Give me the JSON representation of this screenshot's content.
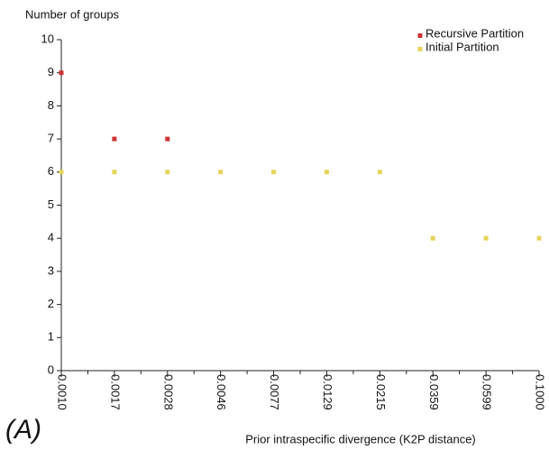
{
  "chart_data": {
    "type": "scatter",
    "title": "Number of groups",
    "x_label": "Prior intraspecific divergence (K2P distance)",
    "annotation": "(A)",
    "categories": [
      "0.0010",
      "0.0017",
      "0.0028",
      "0.0046",
      "0.0077",
      "0.0129",
      "0.0215",
      "0.0359",
      "0.0599",
      "0.1000"
    ],
    "series": [
      {
        "name": "Recursive Partition",
        "color": "#cc3333",
        "values": [
          9,
          7,
          7,
          null,
          null,
          null,
          null,
          null,
          null,
          null
        ]
      },
      {
        "name": "Initial Partition",
        "color": "#e6d45a",
        "values": [
          6,
          6,
          6,
          6,
          6,
          6,
          6,
          4,
          4,
          4
        ]
      }
    ],
    "ylim": [
      0,
      10
    ],
    "yticks": [
      0,
      1,
      2,
      3,
      4,
      5,
      6,
      7,
      8,
      9,
      10
    ],
    "legend": "top-right"
  }
}
